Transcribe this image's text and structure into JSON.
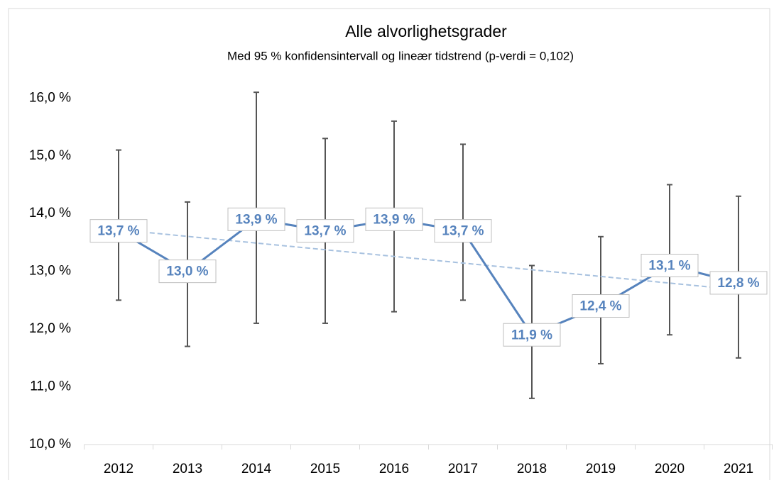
{
  "chart_data": {
    "type": "line",
    "title": "Alle alvorlighetsgrader",
    "subtitle": "Med 95 % konfidensintervall og lineær tidstrend (p-verdi = 0,102)",
    "categories": [
      "2012",
      "2013",
      "2014",
      "2015",
      "2016",
      "2017",
      "2018",
      "2019",
      "2020",
      "2021"
    ],
    "values": [
      13.7,
      13.0,
      13.9,
      13.7,
      13.9,
      13.7,
      11.9,
      12.4,
      13.1,
      12.8
    ],
    "value_labels": [
      "13,7 %",
      "13,0 %",
      "13,9 %",
      "13,7 %",
      "13,9 %",
      "13,7 %",
      "11,9 %",
      "12,4 %",
      "13,1 %",
      "12,8 %"
    ],
    "error_high": [
      15.1,
      14.2,
      16.1,
      15.3,
      15.6,
      15.2,
      13.1,
      13.6,
      14.5,
      14.3
    ],
    "error_low": [
      12.5,
      11.7,
      12.1,
      12.1,
      12.3,
      12.5,
      10.8,
      11.4,
      11.9,
      11.5
    ],
    "trendline": [
      13.72,
      12.68
    ],
    "color": "#5683bd",
    "trend_color": "#a7c1df",
    "error_color": "#555555",
    "ylim": [
      10,
      16.2
    ],
    "yticks": [
      {
        "value": 10,
        "label": "10,0 %"
      },
      {
        "value": 11,
        "label": "11,0 %"
      },
      {
        "value": 12,
        "label": "12,0 %"
      },
      {
        "value": 13,
        "label": "13,0 %"
      },
      {
        "value": 14,
        "label": "14,0 %"
      },
      {
        "value": 15,
        "label": "15,0 %"
      },
      {
        "value": 16,
        "label": "16,0 %"
      }
    ],
    "grid": false
  }
}
